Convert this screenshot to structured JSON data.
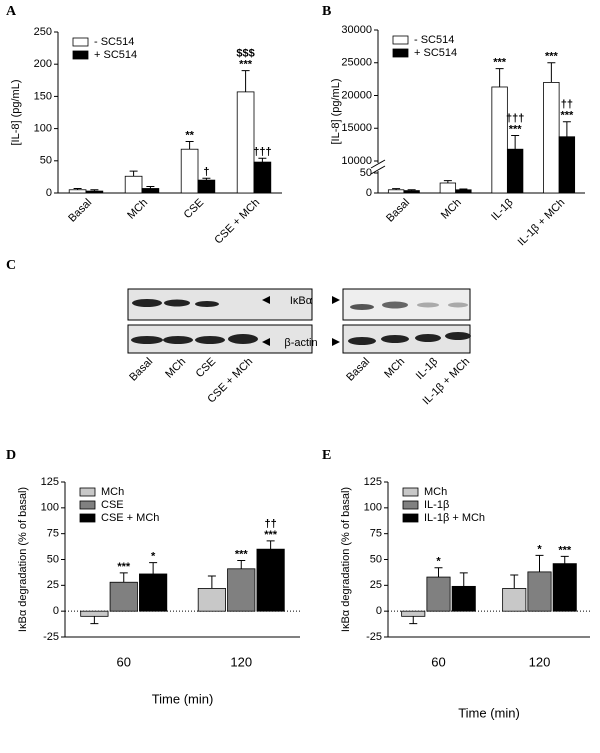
{
  "chart_data": [
    {
      "type": "bar",
      "panel": "A",
      "ylabel": "[IL-8] (pg/mL)",
      "categories": [
        "Basal",
        "MCh",
        "CSE",
        "CSE + MCh"
      ],
      "series": [
        {
          "name": "- SC514",
          "color": "#ffffff",
          "values": [
            5,
            26,
            68,
            157
          ],
          "errors": [
            2,
            8,
            12,
            33
          ],
          "annotations": [
            null,
            null,
            [
              "**"
            ],
            [
              "$$$",
              "***"
            ]
          ]
        },
        {
          "name": "+ SC514",
          "color": "#000000",
          "values": [
            3,
            7,
            20,
            48
          ],
          "errors": [
            2,
            3,
            3,
            6
          ],
          "annotations": [
            null,
            null,
            [
              "†"
            ],
            [
              "†††"
            ]
          ]
        }
      ],
      "ylim": [
        0,
        250
      ],
      "yticks": [
        0,
        50,
        100,
        150,
        200,
        250
      ]
    },
    {
      "type": "bar",
      "panel": "B",
      "ylabel": "[IL-8] (pg/mL)",
      "categories": [
        "Basal",
        "MCh",
        "IL-1β",
        "IL-1β + MCh"
      ],
      "series": [
        {
          "name": "- SC514",
          "color": "#ffffff",
          "values": [
            8,
            25,
            21300,
            22000
          ],
          "errors": [
            3,
            6,
            2800,
            3000
          ],
          "annotations": [
            null,
            null,
            [
              "***"
            ],
            [
              "***"
            ]
          ]
        },
        {
          "name": "+ SC514",
          "color": "#000000",
          "values": [
            6,
            8,
            11800,
            13700
          ],
          "errors": [
            2,
            2,
            2100,
            2300
          ],
          "annotations": [
            null,
            null,
            [
              "†††",
              "***"
            ],
            [
              "††",
              "***"
            ]
          ]
        }
      ],
      "ylim": [
        0,
        30000
      ],
      "ybreak": [
        50,
        10000
      ],
      "yticks": [
        0,
        50,
        10000,
        15000,
        20000,
        25000,
        30000
      ]
    },
    {
      "type": "bar",
      "panel": "D",
      "ylabel": "IκBα degradation (% of basal)",
      "xlabel": "Time (min)",
      "categories": [
        "60",
        "120"
      ],
      "zero_line": true,
      "series": [
        {
          "name": "MCh",
          "color": "#c8c8c8",
          "values": [
            -5,
            22
          ],
          "errors": [
            7,
            12
          ],
          "annotations": [
            null,
            null
          ]
        },
        {
          "name": "CSE",
          "color": "#808080",
          "values": [
            28,
            41
          ],
          "errors": [
            9,
            8
          ],
          "annotations": [
            [
              "***"
            ],
            [
              "***"
            ]
          ]
        },
        {
          "name": "CSE + MCh",
          "color": "#000000",
          "values": [
            36,
            60
          ],
          "errors": [
            11,
            8
          ],
          "annotations": [
            [
              "*"
            ],
            [
              "††",
              "***"
            ]
          ]
        }
      ],
      "ylim": [
        -25,
        125
      ],
      "yticks": [
        -25,
        0,
        25,
        50,
        75,
        100,
        125
      ]
    },
    {
      "type": "bar",
      "panel": "E",
      "ylabel": "IκBα degradation (% of basal)",
      "xlabel": "Time (min)",
      "categories": [
        "60",
        "120"
      ],
      "zero_line": true,
      "series": [
        {
          "name": "MCh",
          "color": "#c8c8c8",
          "values": [
            -5,
            22
          ],
          "errors": [
            7,
            13
          ],
          "annotations": [
            null,
            null
          ]
        },
        {
          "name": "IL-1β",
          "color": "#808080",
          "values": [
            33,
            38
          ],
          "errors": [
            9,
            16
          ],
          "annotations": [
            [
              "*"
            ],
            [
              "*"
            ]
          ]
        },
        {
          "name": "IL-1β +  MCh",
          "color": "#000000",
          "values": [
            24,
            46
          ],
          "errors": [
            13,
            7
          ],
          "annotations": [
            null,
            [
              "***"
            ]
          ]
        }
      ],
      "ylim": [
        -25,
        125
      ],
      "yticks": [
        -25,
        0,
        25,
        50,
        75,
        100,
        125
      ]
    }
  ],
  "blot": {
    "panel": "C",
    "bands": [
      "IκBα",
      "β-actin"
    ],
    "left_lanes": [
      "Basal",
      "MCh",
      "CSE",
      "CSE + MCh"
    ],
    "right_lanes": [
      "Basal",
      "MCh",
      "IL-1β",
      "IL-1β + MCh"
    ]
  }
}
